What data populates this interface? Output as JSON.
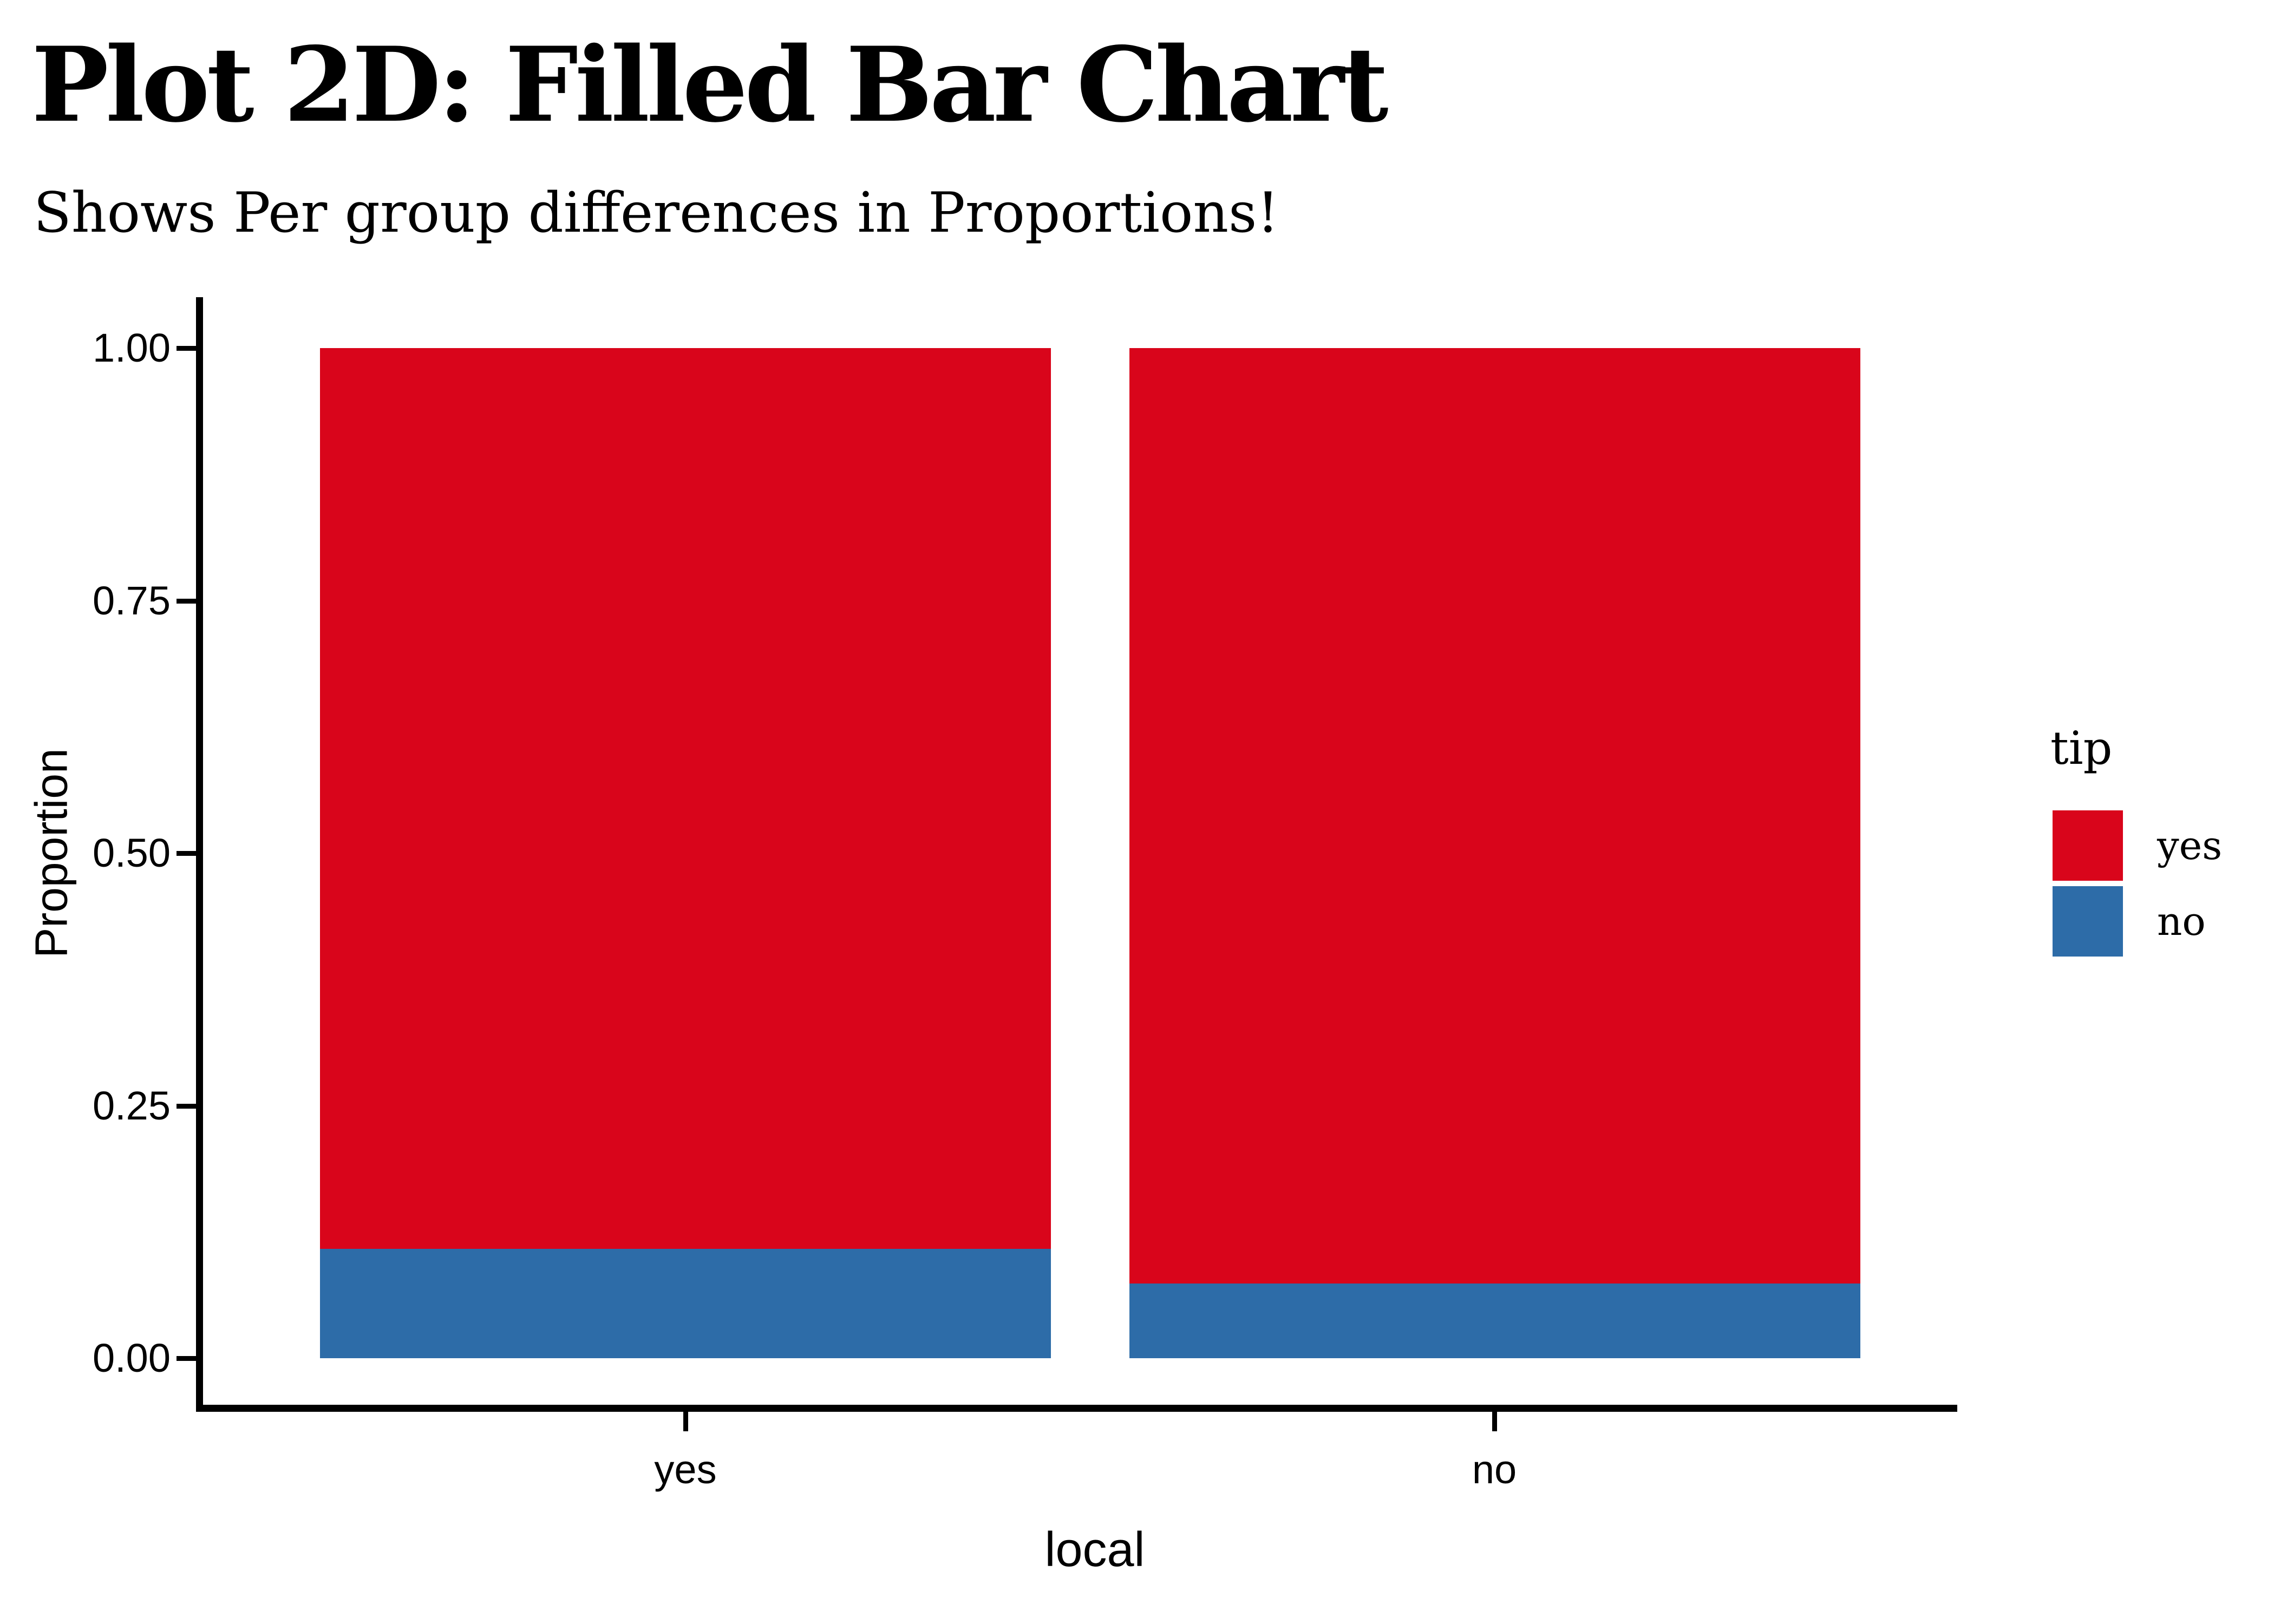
{
  "chart_data": {
    "type": "bar",
    "subtype": "stacked_filled_proportion",
    "title": "Plot 2D: Filled Bar Chart",
    "subtitle": "Shows Per group differences in Proportions!",
    "xlabel": "local",
    "ylabel": "Proportion",
    "categories": [
      "yes",
      "no"
    ],
    "series": [
      {
        "name": "yes",
        "color": "#D9051B",
        "values": [
          0.892,
          0.926
        ]
      },
      {
        "name": "no",
        "color": "#2D6CA8",
        "values": [
          0.108,
          0.074
        ]
      }
    ],
    "stack_order_top_to_bottom": [
      "yes",
      "no"
    ],
    "ylim": [
      0,
      1
    ],
    "yticks": [
      {
        "value": 1.0,
        "label": "1.00"
      },
      {
        "value": 0.75,
        "label": "0.75"
      },
      {
        "value": 0.5,
        "label": "0.50"
      },
      {
        "value": 0.25,
        "label": "0.25"
      },
      {
        "value": 0.0,
        "label": "0.00"
      }
    ],
    "legend": {
      "title": "tip",
      "position": "right",
      "entries": [
        {
          "label": "yes",
          "color": "#D9051B"
        },
        {
          "label": "no",
          "color": "#2D6CA8"
        }
      ]
    },
    "grid": false,
    "axis_color": "#000000",
    "text_color": "#000000",
    "background": "#FFFFFF"
  }
}
